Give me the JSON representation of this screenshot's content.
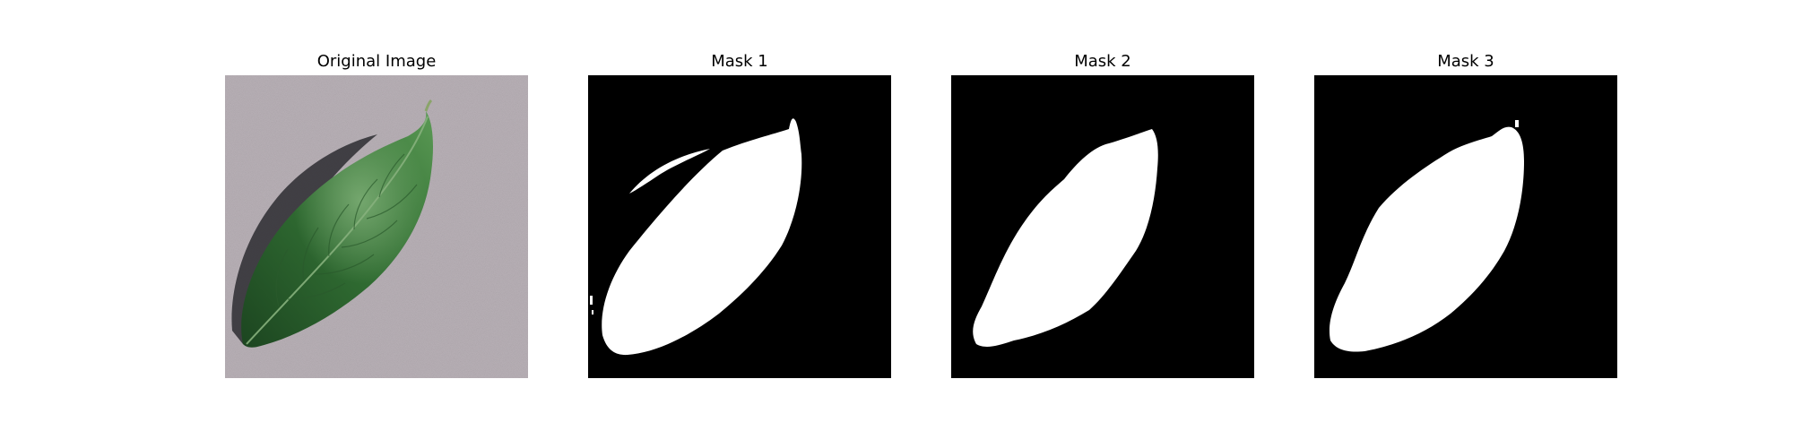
{
  "figure": {
    "background": "#ffffff",
    "panels": [
      {
        "title": "Original Image",
        "kind": "photo",
        "subject": "green-leaf-on-gray-surface"
      },
      {
        "title": "Mask 1",
        "kind": "mask"
      },
      {
        "title": "Mask 2",
        "kind": "mask"
      },
      {
        "title": "Mask 3",
        "kind": "mask"
      }
    ]
  },
  "colors": {
    "mask_background": "#000000",
    "mask_foreground": "#ffffff",
    "photo_surface": "#b8b0b6",
    "leaf_dark": "#1f4a22",
    "leaf_mid": "#3b7a3c",
    "leaf_highlight": "#6fa86a",
    "leaf_shadow": "#2a2a2e"
  }
}
